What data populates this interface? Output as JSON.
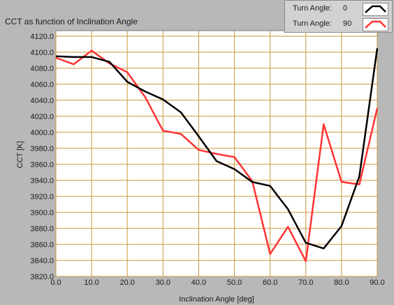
{
  "chart_data": {
    "type": "line",
    "title": "CCT as function of Inclination Angle",
    "xlabel": "Inclination Angle [deg]",
    "ylabel": "CCT [K]",
    "xlim": [
      0,
      90
    ],
    "ylim": [
      3820,
      4120
    ],
    "x_ticks": [
      "0.0",
      "10.0",
      "20.0",
      "30.0",
      "40.0",
      "50.0",
      "60.0",
      "70.0",
      "80.0",
      "90.0"
    ],
    "y_ticks": [
      "4120.0",
      "4100.0",
      "4080.0",
      "4060.0",
      "4040.0",
      "4020.0",
      "4000.0",
      "3980.0",
      "3960.0",
      "3940.0",
      "3920.0",
      "3900.0",
      "3880.0",
      "3860.0",
      "3840.0",
      "3820.0"
    ],
    "grid": true,
    "legend_position": "top-right",
    "x": [
      0,
      5,
      10,
      15,
      20,
      25,
      30,
      35,
      40,
      45,
      50,
      55,
      60,
      65,
      70,
      75,
      80,
      85,
      90
    ],
    "series": [
      {
        "label": "Turn Angle:",
        "name": "0",
        "color": "#000000",
        "values": [
          4095,
          4094,
          4094,
          4088,
          4063,
          4051,
          4041,
          4025,
          3995,
          3964,
          3954,
          3938,
          3933,
          3904,
          3862,
          3855,
          3883,
          3945,
          4105
        ]
      },
      {
        "label": "Turn Angle:",
        "name": "90",
        "color": "#ff3333",
        "values": [
          4093,
          4085,
          4102,
          4086,
          4075,
          4044,
          4002,
          3998,
          3978,
          3973,
          3969,
          3939,
          3848,
          3882,
          3839,
          4010,
          3938,
          3935,
          4030
        ]
      }
    ]
  },
  "colors": {
    "background": "#b8b8b8",
    "plot_background": "#ffffff",
    "grid": "#c8963c"
  }
}
